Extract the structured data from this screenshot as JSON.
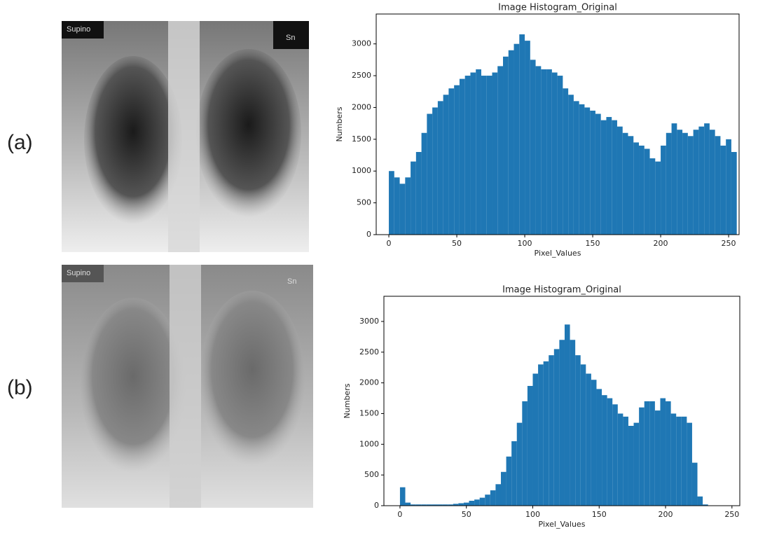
{
  "panels": [
    {
      "label": "(a)",
      "image_texts": [
        "Supino",
        "Sn"
      ]
    },
    {
      "label": "(b)",
      "image_texts": [
        "Supino",
        "Sn"
      ]
    }
  ],
  "chart_data": [
    {
      "type": "histogram",
      "title": "Image Histogram_Original",
      "x_label": "Pixel_Values",
      "y_label": "Numbers",
      "color": "#1f77b4",
      "bins": [
        0,
        4,
        8,
        12,
        16,
        20,
        24,
        28,
        32,
        36,
        40,
        44,
        48,
        52,
        56,
        60,
        64,
        68,
        72,
        76,
        80,
        84,
        88,
        92,
        96,
        100,
        104,
        108,
        112,
        116,
        120,
        124,
        128,
        132,
        136,
        140,
        144,
        148,
        152,
        156,
        160,
        164,
        168,
        172,
        176,
        180,
        184,
        188,
        192,
        196,
        200,
        204,
        208,
        212,
        216,
        220,
        224,
        228,
        232,
        236,
        240,
        244,
        248,
        252,
        256
      ],
      "values": [
        1000,
        900,
        800,
        900,
        1150,
        1300,
        1600,
        1900,
        2000,
        2100,
        2200,
        2300,
        2350,
        2450,
        2500,
        2550,
        2600,
        2500,
        2500,
        2550,
        2650,
        2800,
        2900,
        3000,
        3150,
        3050,
        2750,
        2650,
        2600,
        2600,
        2550,
        2500,
        2300,
        2200,
        2100,
        2050,
        2000,
        1950,
        1900,
        1800,
        1850,
        1800,
        1700,
        1600,
        1550,
        1450,
        1400,
        1350,
        1200,
        1150,
        1400,
        1600,
        1750,
        1650,
        1600,
        1550,
        1650,
        1700,
        1750,
        1650,
        1550,
        1400,
        1500,
        1300
      ],
      "xlim": [
        -9.3,
        257.7
      ],
      "xticks": [
        0,
        50,
        100,
        150,
        200,
        250
      ],
      "ylim": [
        0,
        3470
      ],
      "yticks": [
        0,
        500,
        1000,
        1500,
        2000,
        2500,
        3000
      ]
    },
    {
      "type": "histogram",
      "title": "Image Histogram_Original",
      "x_label": "Pixel_Values",
      "y_label": "Numbers",
      "color": "#1f77b4",
      "bins": [
        0,
        4,
        8,
        12,
        16,
        20,
        24,
        28,
        32,
        36,
        40,
        44,
        48,
        52,
        56,
        60,
        64,
        68,
        72,
        76,
        80,
        84,
        88,
        92,
        96,
        100,
        104,
        108,
        112,
        116,
        120,
        124,
        128,
        132,
        136,
        140,
        144,
        148,
        152,
        156,
        160,
        164,
        168,
        172,
        176,
        180,
        184,
        188,
        192,
        196,
        200,
        204,
        208,
        212,
        216,
        220,
        224,
        228,
        232,
        236,
        240,
        244,
        248,
        252,
        256
      ],
      "values": [
        300,
        50,
        20,
        20,
        20,
        20,
        20,
        20,
        20,
        20,
        30,
        40,
        50,
        80,
        100,
        130,
        180,
        250,
        350,
        550,
        800,
        1050,
        1350,
        1700,
        1950,
        2150,
        2300,
        2350,
        2450,
        2550,
        2700,
        2950,
        2700,
        2450,
        2300,
        2150,
        2050,
        1900,
        1800,
        1750,
        1650,
        1500,
        1450,
        1300,
        1350,
        1600,
        1700,
        1700,
        1550,
        1750,
        1700,
        1500,
        1450,
        1450,
        1350,
        700,
        150,
        20,
        0,
        0,
        0,
        0,
        0,
        0
      ],
      "xlim": [
        -12.1,
        255.9
      ],
      "xticks": [
        0,
        50,
        100,
        150,
        200,
        250
      ],
      "ylim": [
        0,
        3410
      ],
      "yticks": [
        0,
        500,
        1000,
        1500,
        2000,
        2500,
        3000
      ]
    }
  ]
}
